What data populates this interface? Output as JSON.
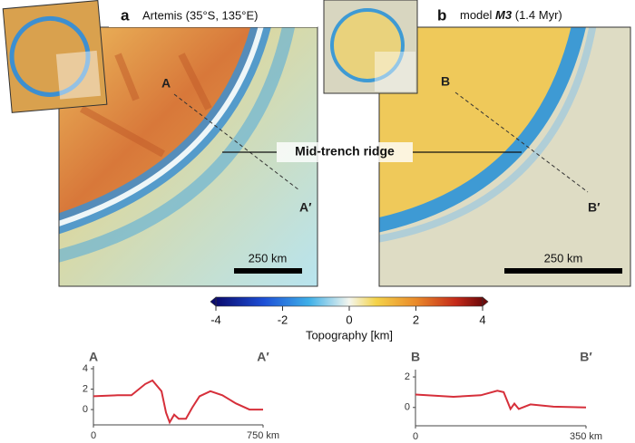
{
  "panel_a": {
    "letter": "a",
    "title": "Artemis (35°S, 135°E)",
    "point_start": "A",
    "point_end": "A′",
    "scale_bar": "250 km"
  },
  "panel_b": {
    "letter": "b",
    "title_prefix": "model",
    "title_model": "M3",
    "title_suffix": "(1.4 Myr)",
    "point_start": "B",
    "point_end": "B′",
    "scale_bar": "250 km"
  },
  "annotation": "Mid-trench ridge",
  "colorbar": {
    "label": "Topography [km]",
    "lim": [
      -4,
      4
    ],
    "ticks": [
      -4,
      -2,
      0,
      2,
      4
    ]
  },
  "chart_data": [
    {
      "type": "line",
      "start_label": "A",
      "end_label": "A′",
      "x": [
        0,
        108,
        168,
        229,
        261,
        301,
        321,
        337,
        357,
        377,
        409,
        437,
        469,
        517,
        570,
        630,
        690,
        750
      ],
      "series": [
        {
          "color": "#d62f3a",
          "values": [
            1.3,
            1.4,
            1.4,
            2.5,
            2.85,
            1.8,
            -0.3,
            -1.25,
            -0.5,
            -0.9,
            -0.9,
            0.2,
            1.3,
            1.8,
            1.4,
            0.6,
            0,
            0
          ]
        }
      ],
      "xlim": [
        0,
        750
      ],
      "xticks": [
        0,
        {
          "value": 750,
          "label": "750 km"
        }
      ],
      "ylim": [
        -1.5,
        4
      ],
      "yticks": [
        0,
        2,
        4
      ]
    },
    {
      "type": "line",
      "start_label": "B",
      "end_label": "B′",
      "x": [
        0,
        78,
        134,
        168,
        181,
        190,
        195,
        203,
        212,
        236,
        283,
        350
      ],
      "series": [
        {
          "color": "#d62f3a",
          "values": [
            0.85,
            0.7,
            0.8,
            1.1,
            1.0,
            0.3,
            -0.1,
            0.25,
            -0.1,
            0.2,
            0.05,
            0
          ]
        }
      ],
      "xlim": [
        0,
        350
      ],
      "xticks": [
        0,
        {
          "value": 350,
          "label": "350 km"
        }
      ],
      "ylim": [
        -1.2,
        2.3
      ],
      "yticks": [
        0,
        2
      ]
    }
  ]
}
